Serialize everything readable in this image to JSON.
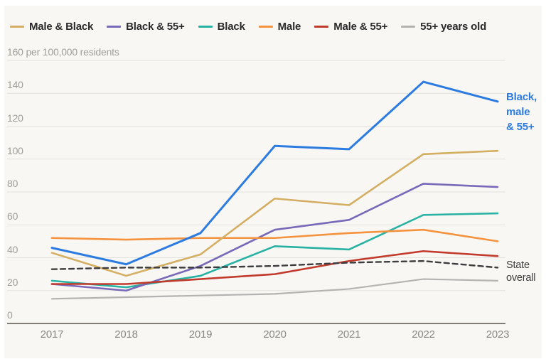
{
  "chart_data": {
    "type": "line",
    "x_axis": {
      "labels": [
        "2017",
        "2018",
        "2019",
        "2020",
        "2021",
        "2022",
        "2023"
      ]
    },
    "y_axis": {
      "top_label": "160 per 100,000 residents",
      "ticks": [
        0,
        20,
        40,
        60,
        80,
        100,
        120,
        140
      ],
      "top_tick": 160,
      "ylim": [
        0,
        160
      ],
      "grid": true
    },
    "series": [
      {
        "name": "55+ years old",
        "color": "#b5b3b1",
        "dash": false,
        "width": 2.2,
        "values": [
          15,
          16,
          17,
          18,
          21,
          27,
          26
        ]
      },
      {
        "name": "Black",
        "color": "#27b2a4",
        "dash": false,
        "width": 2.6,
        "values": [
          26,
          22,
          29,
          47,
          45,
          66,
          67
        ]
      },
      {
        "name": "Black & 55+",
        "color": "#7a68b8",
        "dash": false,
        "width": 2.6,
        "values": [
          24,
          20,
          35,
          57,
          63,
          85,
          83
        ]
      },
      {
        "name": "Male",
        "color": "#f5923e",
        "dash": false,
        "width": 2.6,
        "values": [
          52,
          51,
          52,
          52,
          55,
          57,
          50
        ]
      },
      {
        "name": "Male & 55+",
        "color": "#c23a2c",
        "dash": false,
        "width": 2.6,
        "values": [
          24,
          24,
          27,
          30,
          38,
          44,
          41
        ]
      },
      {
        "name": "Male & Black",
        "color": "#d4ae62",
        "dash": false,
        "width": 2.6,
        "values": [
          43,
          29,
          42,
          76,
          72,
          103,
          105
        ]
      },
      {
        "name": "State overall",
        "color": "#3d3d3d",
        "dash": true,
        "width": 2.4,
        "values": [
          33,
          34,
          34,
          35,
          37,
          38,
          34
        ]
      },
      {
        "name": "Black, male & 55+",
        "color": "#2c7be0",
        "dash": false,
        "width": 3.0,
        "values": [
          46,
          36,
          55,
          108,
          106,
          147,
          135
        ]
      }
    ],
    "legend_position": "top-left"
  },
  "legend": {
    "items": [
      {
        "label": "Male & Black",
        "color": "#d4ae62"
      },
      {
        "label": "Black & 55+",
        "color": "#7a68b8"
      },
      {
        "label": "Black",
        "color": "#27b2a4"
      },
      {
        "label": "Male",
        "color": "#f5923e"
      },
      {
        "label": "Male & 55+",
        "color": "#c23a2c"
      },
      {
        "label": "55+ years old",
        "color": "#b5b3b1"
      }
    ]
  },
  "annotations": {
    "blue_line_label": {
      "lines": [
        "Black,",
        "male",
        "& 55+"
      ],
      "color": "#2c7be0"
    },
    "state_overall_label": {
      "lines": [
        "State",
        "overall"
      ],
      "color": "#3d3d3d"
    }
  },
  "colors": {
    "background": "#f8f7f4",
    "gridline": "#e4e2de",
    "axis_line": "#807d79",
    "tick_label": "#a19d99",
    "legend_text": "#2a2a2a"
  }
}
